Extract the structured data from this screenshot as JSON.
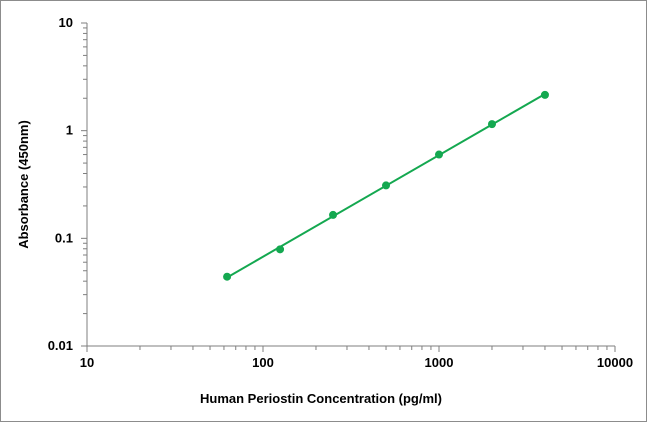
{
  "chart_data": {
    "type": "scatter",
    "xlabel": "Human Periostin Concentration (pg/ml)",
    "ylabel": "Absorbance (450nm)",
    "xscale": "log",
    "yscale": "log",
    "xlim": [
      10,
      10000
    ],
    "ylim": [
      0.01,
      10
    ],
    "x_tick_labels": [
      "10",
      "100",
      "1000",
      "10000"
    ],
    "y_tick_labels": [
      "10",
      "1",
      "0.1",
      "0.01"
    ],
    "grid": false,
    "legend": "none",
    "series": [
      {
        "color": "#14a850",
        "marker": "circle",
        "trendline": "power",
        "x": [
          62.5,
          125,
          250,
          500,
          1000,
          2000,
          4000
        ],
        "y": [
          0.044,
          0.079,
          0.165,
          0.31,
          0.6,
          1.15,
          2.15
        ]
      }
    ]
  }
}
